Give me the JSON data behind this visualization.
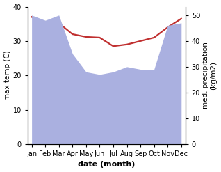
{
  "months": [
    "Jan",
    "Feb",
    "Mar",
    "Apr",
    "May",
    "Jun",
    "Jul",
    "Aug",
    "Sep",
    "Oct",
    "Nov",
    "Dec"
  ],
  "temp_max": [
    37.0,
    35.0,
    35.2,
    32.0,
    31.2,
    31.0,
    28.5,
    29.0,
    30.0,
    31.0,
    34.0,
    36.5
  ],
  "precip": [
    50,
    48,
    50,
    35,
    28,
    27,
    28,
    30,
    29,
    29,
    46,
    47
  ],
  "fill_color": "#aab0e0",
  "fill_alpha": 1.0,
  "line_color": "#c03030",
  "line_width": 1.6,
  "temp_ylim": [
    0,
    40
  ],
  "precip_ylim": [
    0,
    53.3
  ],
  "temp_yticks": [
    0,
    10,
    20,
    30,
    40
  ],
  "precip_yticks": [
    0,
    10,
    20,
    30,
    40,
    50
  ],
  "xlabel": "date (month)",
  "ylabel_left": "max temp (C)",
  "ylabel_right": "med. precipitation\n(kg/m2)",
  "xlabel_fontsize": 8,
  "ylabel_fontsize": 7.5,
  "tick_fontsize": 7,
  "background_color": "#ffffff"
}
